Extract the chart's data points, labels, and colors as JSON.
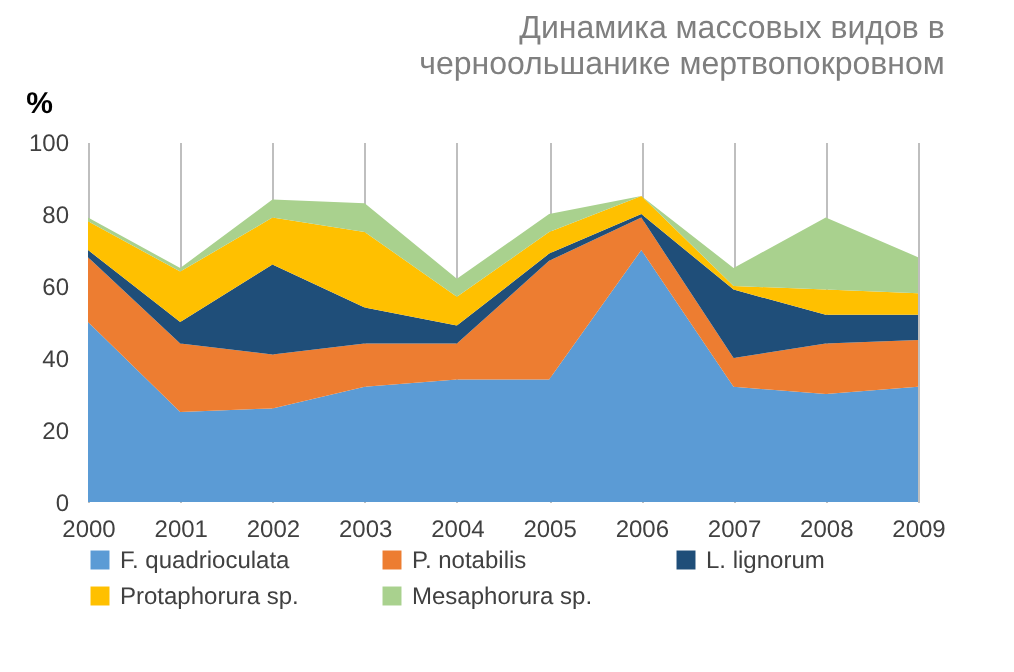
{
  "chart_data": {
    "type": "area",
    "stacked": true,
    "title": "Динамика массовых видов в\nчерноольшанике  мертвопокровном",
    "ylabel": "%",
    "categories": [
      "2000",
      "2001",
      "2002",
      "2003",
      "2004",
      "2005",
      "2006",
      "2007",
      "2008",
      "2009"
    ],
    "series": [
      {
        "name": "F. quadrioculata",
        "color": "#5b9bd5",
        "values": [
          50,
          25,
          26,
          32,
          34,
          34,
          70,
          32,
          30,
          32
        ]
      },
      {
        "name": "P. notabilis",
        "color": "#ed7d31",
        "values": [
          18,
          19,
          15,
          12,
          10,
          33,
          9,
          8,
          14,
          13
        ]
      },
      {
        "name": "L. lignorum",
        "color": "#1f4e79",
        "values": [
          2,
          6,
          25,
          10,
          5,
          2,
          1,
          19,
          8,
          7
        ]
      },
      {
        "name": "Protaphorura sp.",
        "color": "#ffc000",
        "values": [
          8,
          14,
          13,
          21,
          8,
          6,
          5,
          1,
          7,
          6
        ]
      },
      {
        "name": "Mesaphorura sp.",
        "color": "#a9d18e",
        "values": [
          1,
          1,
          5,
          8,
          5,
          5,
          0,
          5,
          20,
          10
        ]
      }
    ],
    "ylim": [
      0,
      100
    ],
    "yticks": [
      0,
      20,
      40,
      60,
      80,
      100
    ],
    "grid": "x",
    "legend": "bottom"
  }
}
